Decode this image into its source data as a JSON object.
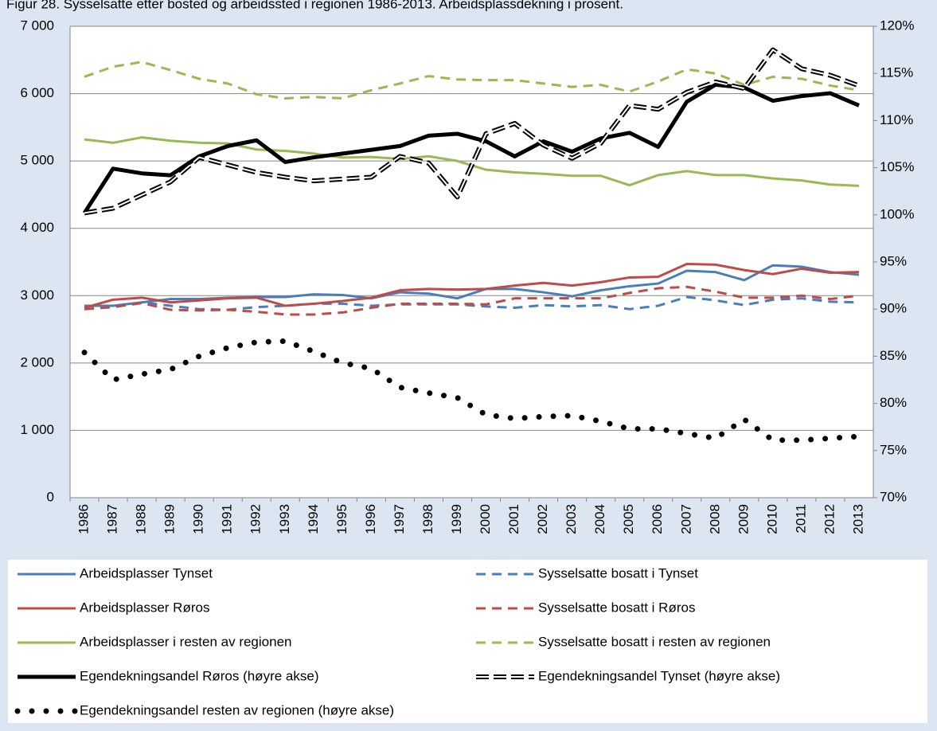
{
  "chart_data": {
    "type": "line",
    "title": "Figur 28. Sysselsatte etter bosted og arbeidssted i regionen 1986-2013. Arbeidsplassdekning i prosent.",
    "categories": [
      "1986",
      "1987",
      "1988",
      "1989",
      "1990",
      "1991",
      "1992",
      "1993",
      "1994",
      "1995",
      "1996",
      "1997",
      "1998",
      "1999",
      "2000",
      "2001",
      "2002",
      "2003",
      "2004",
      "2005",
      "2006",
      "2007",
      "2008",
      "2009",
      "2010",
      "2011",
      "2012",
      "2013"
    ],
    "ylim": [
      0,
      7000
    ],
    "yticks": [
      0,
      {
        "value": 1000,
        "label": "1 000"
      },
      {
        "value": 2000,
        "label": "2 000"
      },
      {
        "value": 3000,
        "label": "3 000"
      },
      {
        "value": 4000,
        "label": "4 000"
      },
      {
        "value": 5000,
        "label": "5 000"
      },
      {
        "value": 6000,
        "label": "6 000"
      },
      {
        "value": 7000,
        "label": "7 000"
      }
    ],
    "y2lim": [
      70,
      120
    ],
    "y2ticks": [
      {
        "value": 70,
        "label": "70%"
      },
      {
        "value": 75,
        "label": "75%"
      },
      {
        "value": 80,
        "label": "80%"
      },
      {
        "value": 85,
        "label": "85%"
      },
      {
        "value": 90,
        "label": "90%"
      },
      {
        "value": 95,
        "label": "95%"
      },
      {
        "value": 100,
        "label": "100%"
      },
      {
        "value": 105,
        "label": "105%"
      },
      {
        "value": 110,
        "label": "110%"
      },
      {
        "value": 115,
        "label": "115%"
      },
      {
        "value": 120,
        "label": "120%"
      }
    ],
    "grid": true,
    "legend": "bottom",
    "series": [
      {
        "name": "Arbeidsplasser Tynset",
        "color": "#4a7ebb",
        "style": "solid",
        "values": [
          2850,
          2850,
          2900,
          2950,
          2950,
          2970,
          2980,
          2980,
          3020,
          3010,
          2960,
          3050,
          3030,
          2960,
          3100,
          3100,
          3050,
          2990,
          3080,
          3140,
          3180,
          3370,
          3350,
          3230,
          3450,
          3430,
          3350,
          3310
        ]
      },
      {
        "name": "Sysselsatte bosatt i Tynset",
        "color": "#4a7ebb",
        "style": "dashed",
        "values": [
          2850,
          2830,
          2900,
          2850,
          2800,
          2790,
          2830,
          2850,
          2880,
          2880,
          2850,
          2870,
          2870,
          2870,
          2840,
          2820,
          2860,
          2840,
          2860,
          2800,
          2850,
          2980,
          2930,
          2860,
          2940,
          2960,
          2910,
          2900
        ]
      },
      {
        "name": "Arbeidsplasser Røros",
        "color": "#be4b48",
        "style": "solid",
        "values": [
          2820,
          2940,
          2970,
          2900,
          2930,
          2960,
          2970,
          2850,
          2880,
          2920,
          2970,
          3080,
          3100,
          3090,
          3100,
          3150,
          3190,
          3150,
          3200,
          3270,
          3280,
          3470,
          3460,
          3380,
          3320,
          3400,
          3340,
          3350
        ]
      },
      {
        "name": "Sysselsatte bosatt i Røros",
        "color": "#be4b48",
        "style": "dashed",
        "values": [
          2800,
          2830,
          2890,
          2790,
          2780,
          2790,
          2760,
          2720,
          2720,
          2750,
          2820,
          2880,
          2880,
          2880,
          2870,
          2960,
          2960,
          2960,
          2960,
          3040,
          3110,
          3130,
          3060,
          2970,
          2970,
          3000,
          2950,
          3000
        ]
      },
      {
        "name": "Arbeidsplasser i resten av regionen",
        "color": "#98b954",
        "style": "solid",
        "values": [
          5320,
          5270,
          5350,
          5300,
          5270,
          5260,
          5170,
          5150,
          5110,
          5050,
          5060,
          5030,
          5070,
          5000,
          4870,
          4830,
          4810,
          4780,
          4780,
          4640,
          4790,
          4850,
          4790,
          4790,
          4740,
          4710,
          4650,
          4630
        ]
      },
      {
        "name": "Sysselsatte bosatt i resten av regionen",
        "color": "#98b954",
        "style": "dashed",
        "values": [
          6250,
          6400,
          6470,
          6350,
          6220,
          6150,
          5990,
          5930,
          5950,
          5930,
          6050,
          6150,
          6260,
          6210,
          6200,
          6200,
          6150,
          6100,
          6130,
          6030,
          6180,
          6360,
          6300,
          6130,
          6250,
          6220,
          6120,
          6050
        ]
      },
      {
        "name": "Egendekningsandel Røros (høyre akse)",
        "color": "#000000",
        "style": "solid",
        "axis": "y2",
        "values": [
          100.2,
          104.9,
          104.4,
          104.2,
          106.2,
          107.3,
          107.9,
          105.6,
          106.1,
          106.5,
          106.9,
          107.3,
          108.4,
          108.6,
          107.8,
          106.2,
          107.8,
          106.7,
          108.1,
          108.7,
          107.2,
          112.0,
          113.8,
          113.5,
          112.1,
          112.6,
          112.9,
          111.6
        ]
      },
      {
        "name": "Egendekningsandel Tynset (høyre akse)",
        "color": "#000000",
        "style": "hollow-dashed",
        "axis": "y2",
        "values": [
          100.2,
          100.7,
          102.1,
          103.5,
          106.1,
          105.3,
          104.5,
          104.0,
          103.6,
          103.8,
          104.0,
          106.2,
          105.5,
          101.9,
          108.6,
          109.7,
          107.4,
          106.0,
          107.6,
          111.6,
          111.2,
          113.0,
          114.1,
          113.4,
          117.5,
          115.5,
          114.8,
          113.7
        ]
      },
      {
        "name": "Egendekningsandel resten av regionen (høyre akse)",
        "color": "#000000",
        "style": "dotted",
        "axis": "y2",
        "values": [
          85.4,
          82.5,
          83.1,
          83.6,
          85.0,
          85.9,
          86.5,
          86.6,
          85.5,
          84.3,
          83.7,
          81.7,
          81.1,
          80.6,
          78.8,
          78.4,
          78.6,
          78.7,
          78.1,
          77.3,
          77.3,
          76.8,
          76.3,
          78.3,
          76.1,
          76.1,
          76.3,
          76.5
        ]
      }
    ]
  }
}
